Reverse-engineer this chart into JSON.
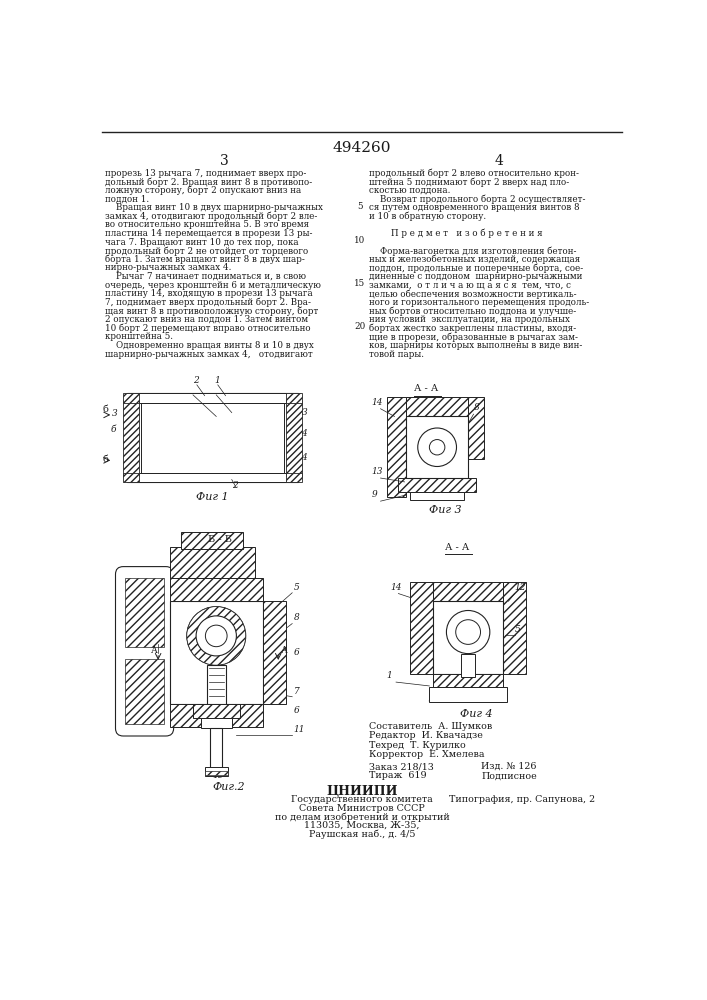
{
  "patent_number": "494260",
  "page_left": "3",
  "page_right": "4",
  "col_left_text": [
    "прорезь 13 рычага 7, поднимает вверх про-",
    "дольный борт 2. Вращая винт 8 в противопо-",
    "ложную сторону, борт 2 опускают вниз на",
    "поддон 1.",
    "    Вращая винт 10 в двух шарнирно-рычажных",
    "замках 4, отодвигают продольный борт 2 вле-",
    "во относительно кронштейна 5. В это время",
    "пластина 14 перемещается в прорези 13 ры-",
    "чага 7. Вращают винт 10 до тех пор, пока",
    "продольный борт 2 не отойдет от торцевого",
    "борта 1. Затем вращают винт 8 в двух шар-",
    "нирно-рычажных замках 4.",
    "    Рычаг 7 начинает подниматься и, в свою",
    "очередь, через кронштейн 6 и металлическую",
    "пластину 14, входящую в прорези 13 рычага",
    "7, поднимает вверх продольный борт 2. Вра-",
    "щая винт 8 в противоположную сторону, борт",
    "2 опускают вниз на поддон 1. Затем винтом",
    "10 борт 2 перемещают вправо относительно",
    "кронштейна 5.",
    "    Одновременно вращая винты 8 и 10 в двух",
    "шарнирно-рычажных замках 4,   отодвигают"
  ],
  "col_right_text": [
    "продольный борт 2 влево относительно крон-",
    "штейна 5 поднимают борт 2 вверх над пло-",
    "скостью поддона.",
    "    Возврат продольного борта 2 осуществляет-",
    "ся путем одновременного вращения винтов 8",
    "и 10 в обратную сторону.",
    "",
    "        П р е д м е т   и з о б р е т е н и я",
    "",
    "    Форма-вагонетка для изготовления бетон-",
    "ных и железобетонных изделий, содержащая",
    "поддон, продольные и поперечные борта, сое-",
    "диненные с поддоном  шарнирно-рычажными",
    "замками,  о т л и ч а ю щ а я с я  тем, что, с",
    "целью обеспечения возможности вертикаль-",
    "ного и горизонтального перемещения продоль-",
    "ных бортов относительно поддона и улучше-",
    "ния условий  эксплуатации, на продольных",
    "бортах жестко закреплены пластины, входя-",
    "щие в прорези, образованные в рычагах зам-",
    "ков, шарниры которых выполнены в виде вин-",
    "товой пары."
  ],
  "staff_lines": [
    "Составитель  А. Шумков",
    "Редактор  И. Квачадзе",
    "Техред  Т. Курилко",
    "Корректор  Е. Хмелева"
  ],
  "order_info": "Заказ 218/13",
  "order_info2": "Изд. № 126",
  "tirazh_info": "Тираж  619",
  "tirazh_info2": "Подписное",
  "org_name": "ЦНИИПИ",
  "org_detail1": "Государственного комитета",
  "org_detail2": "Совета Министров СССР",
  "org_detail3": "по делам изобретений и открытий",
  "org_detail4": "113035, Москва, Ж-35,",
  "org_detail5": "Раушская наб., д. 4/5",
  "print_info": "Типография, пр. Сапунова, 2",
  "bg_color": "#ffffff",
  "text_color": "#1a1a1a",
  "hatch_color": "#333333",
  "line_color": "#222222"
}
